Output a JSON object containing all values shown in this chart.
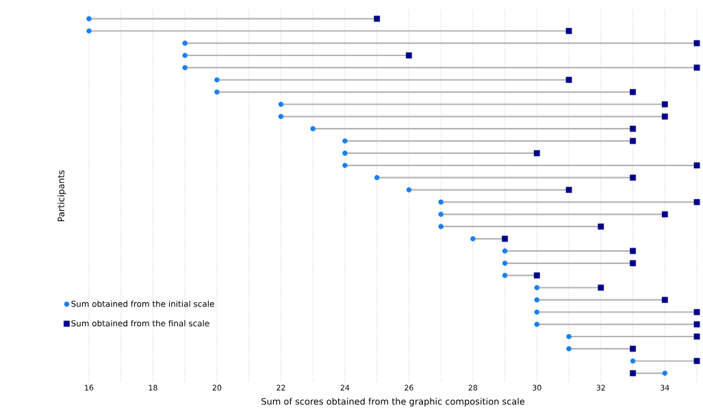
{
  "chart_data": {
    "type": "scatter",
    "orientation": "horizontal",
    "xlabel": "Sum of scores obtained from the graphic composition scale",
    "ylabel": "Participants",
    "categories": [
      null,
      null,
      null,
      null,
      null,
      null,
      null,
      null,
      null,
      null,
      null,
      null,
      null,
      null,
      null,
      null,
      null,
      null,
      null,
      null,
      null,
      null,
      null,
      null,
      null,
      null,
      null,
      null,
      null,
      null
    ],
    "series": [
      {
        "name": "Sum obtained from the initial scale",
        "color": "#1e7ff0",
        "marker": "circle",
        "values": [
          16,
          16,
          19,
          19,
          19,
          20,
          20,
          22,
          22,
          23,
          24,
          24,
          24,
          25,
          26,
          27,
          27,
          27,
          28,
          29,
          29,
          29,
          30,
          30,
          30,
          30,
          31,
          31,
          33,
          34
        ]
      },
      {
        "name": "Sum obtained from the final scale",
        "color": "#00008b",
        "marker": "square",
        "values": [
          25,
          31,
          35,
          26,
          35,
          31,
          33,
          34,
          34,
          33,
          33,
          30,
          35,
          33,
          31,
          35,
          34,
          32,
          29,
          33,
          33,
          30,
          32,
          34,
          35,
          35,
          35,
          33,
          35,
          33
        ]
      }
    ],
    "xlim": [
      16,
      35
    ],
    "xticks": [
      16,
      {
        "value": 17,
        "label": null
      },
      18,
      {
        "value": 19,
        "label": null
      },
      20,
      {
        "value": 21,
        "label": null
      },
      22,
      {
        "value": 23,
        "label": null
      },
      24,
      {
        "value": 25,
        "label": null
      },
      26,
      {
        "value": 27,
        "label": null
      },
      28,
      {
        "value": 29,
        "label": null
      },
      30,
      {
        "value": 31,
        "label": null
      },
      32,
      {
        "value": 33,
        "label": null
      },
      34,
      {
        "value": 35,
        "label": null
      }
    ],
    "grid": "x",
    "legend": "bottom left",
    "tick_labels": "x"
  }
}
